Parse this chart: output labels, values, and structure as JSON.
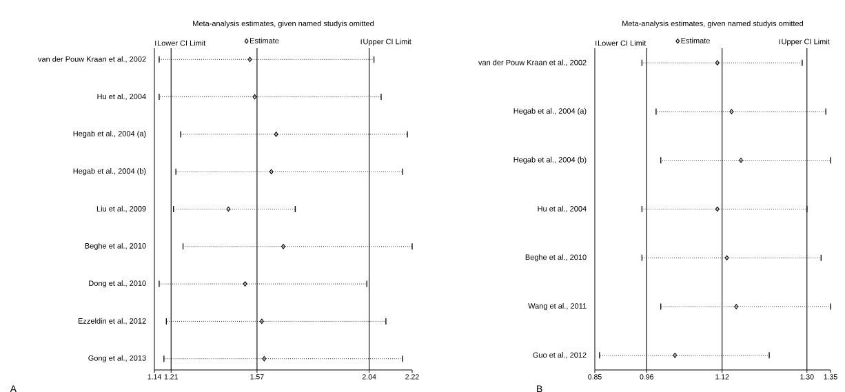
{
  "chart_data": [
    {
      "type": "scatter",
      "orientation": "horizontal",
      "title": "Meta-analysis estimates, given named studyis omitted",
      "categories": [
        "van der Pouw Kraan et al., 2002",
        "Hu et al., 2004",
        "Hegab et al., 2004 (a)",
        "Hegab et al., 2004 (b)",
        "Liu et al., 2009",
        "Beghe et al., 2010",
        "Dong et al., 2010",
        "Ezzeldin et al., 2012",
        "Gong et al., 2013"
      ],
      "series": [
        {
          "name": "Estimate",
          "color": "#000000",
          "marker": "diamond",
          "values": [
            1.54,
            1.56,
            1.65,
            1.63,
            1.45,
            1.68,
            1.52,
            1.59,
            1.6
          ],
          "errors": [
            [
              1.16,
              2.06
            ],
            [
              1.16,
              2.09
            ],
            [
              1.25,
              2.2
            ],
            [
              1.23,
              2.18
            ],
            [
              1.22,
              1.73
            ],
            [
              1.26,
              2.22
            ],
            [
              1.16,
              2.03
            ],
            [
              1.19,
              2.11
            ],
            [
              1.18,
              2.18
            ]
          ]
        }
      ],
      "xlim": [
        1.14,
        2.22
      ],
      "xticks": [
        1.14,
        1.21,
        1.57,
        2.04,
        2.22
      ],
      "ref_lines": [
        {
          "axis": "x",
          "value": 1.21,
          "color": "#000000"
        },
        {
          "axis": "x",
          "value": 1.57,
          "color": "#000000"
        },
        {
          "axis": "x",
          "value": 2.04,
          "color": "#000000"
        }
      ],
      "legend": "top",
      "grid": false,
      "annotations": [
        "A",
        "Lower CI Limit",
        "Upper CI Limit"
      ]
    },
    {
      "type": "scatter",
      "orientation": "horizontal",
      "title": "Meta-analysis estimates, given named studyis omitted",
      "categories": [
        "van der Pouw Kraan et al., 2002",
        "Hegab et al., 2004 (a)",
        "Hegab et al., 2004 (b)",
        "Hu et al., 2004",
        "Beghe et al., 2010",
        "Wang et al., 2011",
        "Guo et al., 2012"
      ],
      "series": [
        {
          "name": "Estimate",
          "color": "#000000",
          "marker": "diamond",
          "values": [
            1.11,
            1.14,
            1.16,
            1.11,
            1.13,
            1.15,
            1.02
          ],
          "errors": [
            [
              0.95,
              1.29
            ],
            [
              0.98,
              1.34
            ],
            [
              0.99,
              1.35
            ],
            [
              0.95,
              1.3
            ],
            [
              0.95,
              1.33
            ],
            [
              0.99,
              1.35
            ],
            [
              0.86,
              1.22
            ]
          ]
        }
      ],
      "xlim": [
        0.85,
        1.35
      ],
      "xticks": [
        0.85,
        0.96,
        1.12,
        {
          "value": 1.3,
          "label": "1.30"
        },
        1.35
      ],
      "ref_lines": [
        {
          "axis": "x",
          "value": 0.96,
          "color": "#000000"
        },
        {
          "axis": "x",
          "value": 1.12,
          "color": "#000000"
        },
        {
          "axis": "x",
          "value": 1.3,
          "color": "#000000"
        }
      ],
      "legend": "top",
      "grid": false,
      "annotations": [
        "B",
        "Lower CI Limit",
        "Upper CI Limit"
      ]
    }
  ]
}
